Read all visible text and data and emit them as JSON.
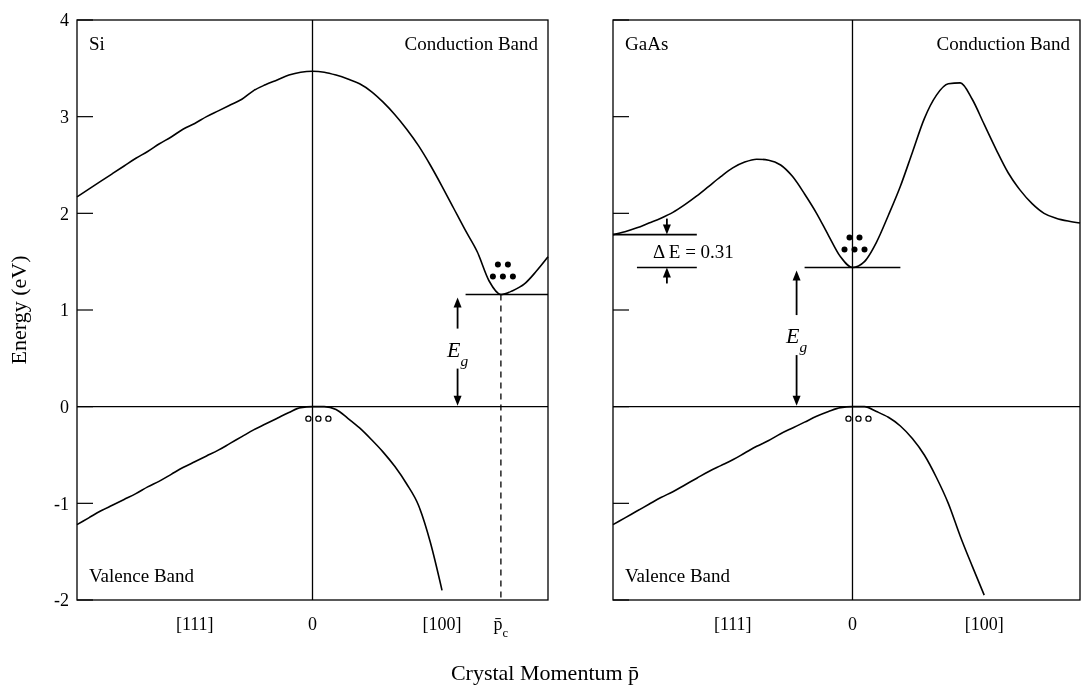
{
  "chart_data": [
    {
      "type": "line",
      "title": "Si",
      "ylabel": "Energy (eV)",
      "ylim": [
        -2,
        4
      ],
      "yticks": [
        -2,
        -1,
        0,
        1,
        2,
        3,
        4
      ],
      "categories": [
        null,
        null,
        null,
        null,
        null,
        null,
        null,
        null,
        null,
        null,
        "[111]",
        null,
        null,
        null,
        null,
        null,
        null,
        null,
        null,
        null,
        "0",
        null,
        null,
        null,
        null,
        null,
        null,
        null,
        null,
        null,
        null,
        "[100]",
        null,
        null,
        null,
        null,
        "p̄$_{c}$",
        null,
        null,
        null,
        null
      ],
      "series": [
        {
          "color": "#000000",
          "values": [
            2.17,
            2.25,
            2.33,
            2.41,
            2.49,
            2.57,
            2.64,
            2.72,
            2.79,
            2.87,
            2.93,
            3.0,
            3.06,
            3.12,
            3.18,
            3.27,
            3.33,
            3.38,
            3.43,
            3.46,
            3.47,
            3.46,
            3.43,
            3.39,
            3.34,
            3.26,
            3.15,
            3.02,
            2.87,
            2.7,
            2.5,
            2.28,
            2.05,
            1.82,
            1.6,
            1.3,
            1.16,
            1.2,
            1.27,
            1.4,
            1.55
          ]
        },
        {
          "color": "#000000",
          "values": [
            -1.22,
            -1.15,
            -1.08,
            -1.02,
            -0.96,
            -0.9,
            -0.83,
            -0.77,
            -0.7,
            -0.63,
            -0.57,
            -0.51,
            -0.45,
            -0.38,
            -0.31,
            -0.24,
            -0.18,
            -0.12,
            -0.06,
            -0.01,
            0,
            0,
            -0.03,
            -0.12,
            -0.22,
            -0.34,
            -0.47,
            -0.62,
            -0.8,
            -1.02,
            -1.4,
            -1.9,
            null,
            null,
            null,
            null,
            null,
            null,
            null,
            null,
            null
          ]
        },
        {
          "color": "#000000",
          "values": [
            null,
            null,
            null,
            null,
            null,
            null,
            null,
            null,
            null,
            null,
            null,
            null,
            null,
            null,
            null,
            null,
            null,
            null,
            null,
            null,
            null,
            null,
            null,
            null,
            null,
            null,
            null,
            null,
            null,
            null,
            null,
            null,
            null,
            1.16,
            1.16,
            1.16,
            1.16,
            1.16,
            1.16,
            1.16,
            1.16
          ]
        }
      ],
      "ref_lines": [
        {
          "axis": "x",
          "value": "0"
        },
        {
          "axis": "y",
          "value": 0
        },
        {
          "axis": "x",
          "value": "p̄$_{c}$",
          "line_style": "dashed"
        }
      ],
      "annotations": [
        "Conduction Band",
        "Valence Band",
        "E$_{g}$"
      ]
    },
    {
      "type": "line",
      "title": "GaAs",
      "xlabel": "Crystal Momentum p̄",
      "ylim": [
        -2,
        4
      ],
      "yticks": [
        -2,
        -1,
        0,
        1,
        2,
        3,
        4
      ],
      "tick_labels": "x",
      "categories": [
        null,
        null,
        null,
        null,
        null,
        null,
        null,
        null,
        null,
        null,
        "[111]",
        null,
        null,
        null,
        null,
        null,
        null,
        null,
        null,
        null,
        "0",
        null,
        null,
        null,
        null,
        null,
        null,
        null,
        null,
        null,
        null,
        "[100]",
        null,
        null,
        null,
        null,
        null,
        null,
        null,
        null
      ],
      "series": [
        {
          "color": "#000000",
          "values": [
            1.78,
            1.81,
            1.85,
            1.9,
            1.95,
            2.01,
            2.09,
            2.18,
            2.28,
            2.38,
            2.47,
            2.53,
            2.56,
            2.55,
            2.5,
            2.38,
            2.2,
            2.0,
            1.77,
            1.55,
            1.44,
            1.5,
            1.7,
            1.98,
            2.28,
            2.63,
            2.98,
            3.22,
            3.34,
            3.35,
            3.18,
            2.92,
            2.66,
            2.42,
            2.24,
            2.1,
            2.0,
            1.95,
            1.92,
            1.9
          ]
        },
        {
          "color": "#000000",
          "values": [
            -1.22,
            -1.15,
            -1.08,
            -1.01,
            -0.94,
            -0.88,
            -0.81,
            -0.74,
            -0.67,
            -0.61,
            -0.55,
            -0.48,
            -0.41,
            -0.35,
            -0.28,
            -0.22,
            -0.16,
            -0.1,
            -0.05,
            -0.01,
            0,
            0,
            -0.05,
            -0.11,
            -0.2,
            -0.33,
            -0.5,
            -0.73,
            -1.0,
            -1.34,
            -1.65,
            -1.95,
            null,
            null,
            null,
            null,
            null,
            null,
            null,
            null
          ]
        },
        {
          "color": "#000000",
          "values": [
            null,
            null,
            null,
            null,
            null,
            null,
            null,
            null,
            null,
            null,
            null,
            null,
            null,
            null,
            null,
            null,
            1.44,
            1.44,
            1.44,
            1.44,
            1.44,
            1.44,
            1.44,
            1.44,
            1.44,
            null,
            null,
            null,
            null,
            null,
            null,
            null,
            null,
            null,
            null,
            null,
            null,
            null,
            null,
            null
          ]
        },
        {
          "color": "#000000",
          "values": [
            1.78,
            1.78,
            1.78,
            1.78,
            1.78,
            1.78,
            1.78,
            1.78,
            null,
            null,
            null,
            null,
            null,
            null,
            null,
            null,
            null,
            null,
            null,
            null,
            null,
            null,
            null,
            null,
            null,
            null,
            null,
            null,
            null,
            null,
            null,
            null,
            null,
            null,
            null,
            null,
            null,
            null,
            null,
            null
          ]
        },
        {
          "color": "#000000",
          "values": [
            null,
            null,
            1.44,
            1.44,
            1.44,
            1.44,
            1.44,
            1.44,
            null,
            null,
            null,
            null,
            null,
            null,
            null,
            null,
            null,
            null,
            null,
            null,
            null,
            null,
            null,
            null,
            null,
            null,
            null,
            null,
            null,
            null,
            null,
            null,
            null,
            null,
            null,
            null,
            null,
            null,
            null,
            null
          ]
        }
      ],
      "ref_lines": [
        {
          "axis": "x",
          "value": "0"
        },
        {
          "axis": "y",
          "value": 0
        }
      ],
      "annotations": [
        "Conduction Band",
        "Valence Band",
        "E$_{g}$",
        "Δ E = 0.31"
      ]
    }
  ]
}
